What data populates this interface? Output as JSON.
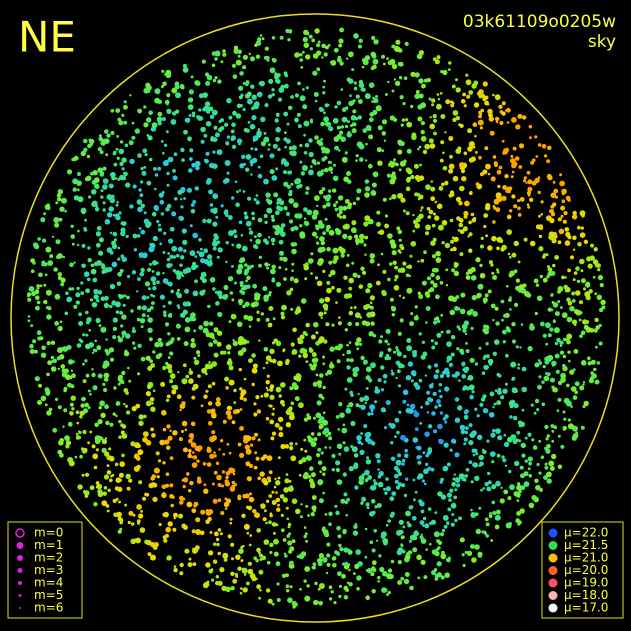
{
  "header": {
    "direction": "NE",
    "frame_id": "03k61109o0205w",
    "image_type": "sky"
  },
  "magnitude_legend": {
    "items": [
      "m=0",
      "m=1",
      "m=2",
      "m=3",
      "m=4",
      "m=5",
      "m=6"
    ],
    "color": "#e020e0"
  },
  "brightness_legend": {
    "items": [
      {
        "label": "μ=22.0",
        "color": "#2050ff"
      },
      {
        "label": "μ=21.5",
        "color": "#30e050"
      },
      {
        "label": "μ=21.0",
        "color": "#ffc000"
      },
      {
        "label": "μ=20.0",
        "color": "#ff6030"
      },
      {
        "label": "μ=19.0",
        "color": "#ff5060"
      },
      {
        "label": "μ=18.0",
        "color": "#ffb0b0"
      },
      {
        "label": "μ=17.0",
        "color": "#ffffff"
      }
    ]
  }
}
